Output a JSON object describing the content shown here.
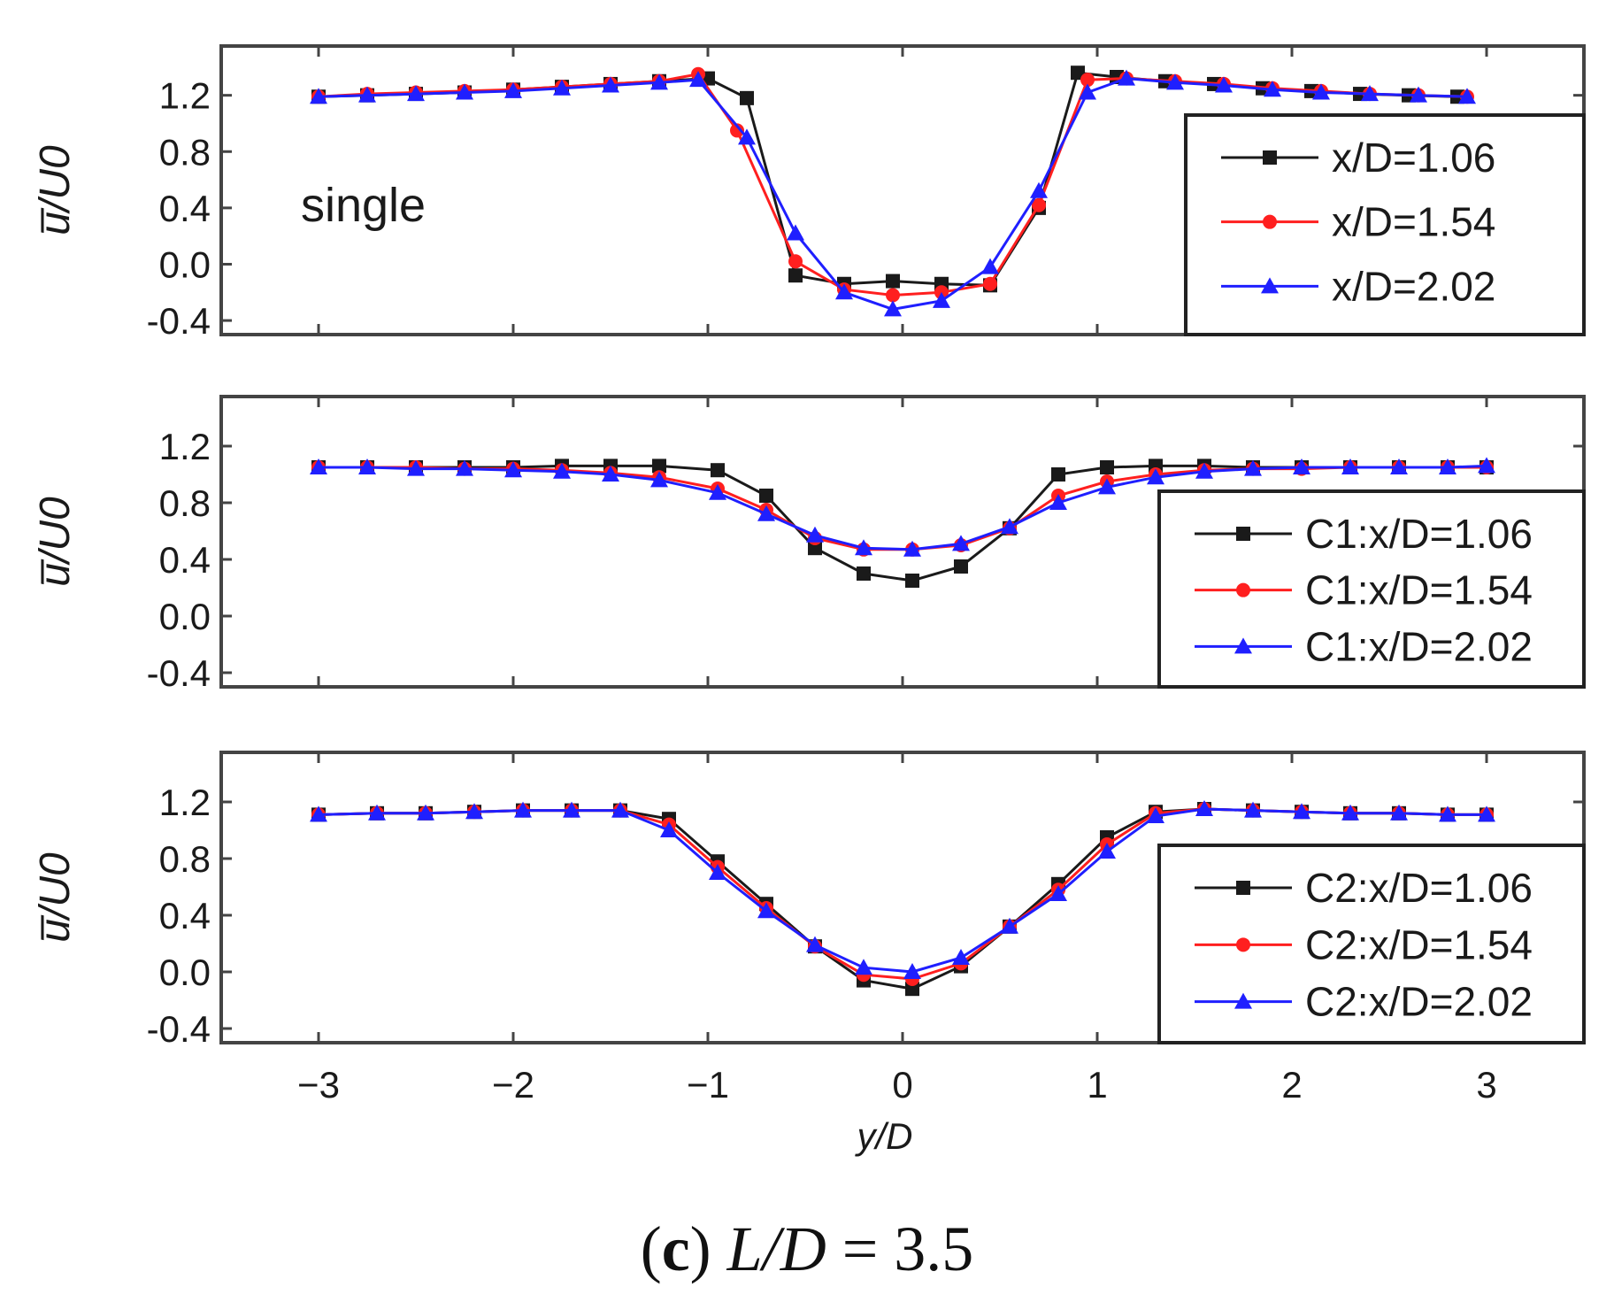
{
  "caption": {
    "open_paren": "(",
    "letter": "c",
    "close_paren": ")",
    "lhs": "L/D",
    "rhs": " = 3.5"
  },
  "colors": {
    "black": "#1a1a1a",
    "red": "#ff1f1f",
    "blue": "#1f1fff"
  },
  "chart_data": [
    {
      "type": "line",
      "annotation": "single",
      "ylabel": "u̅/U0",
      "xlabel": "",
      "xlim": [
        -3.5,
        3.5
      ],
      "ylim": [
        -0.5,
        1.55
      ],
      "yticks": [
        "1.2",
        "0.8",
        "0.4",
        "0.0",
        "-0.4"
      ],
      "ytick_values": [
        1.2,
        0.8,
        0.4,
        0.0,
        -0.4
      ],
      "legend_position": "right",
      "series": [
        {
          "name": "x/D=1.06",
          "color": "#1a1a1a",
          "marker": "square",
          "x": [
            -3.0,
            -2.75,
            -2.5,
            -2.25,
            -2.0,
            -1.75,
            -1.5,
            -1.25,
            -1.0,
            -0.8,
            -0.55,
            -0.3,
            -0.05,
            0.2,
            0.45,
            0.7,
            0.9,
            1.1,
            1.35,
            1.6,
            1.85,
            2.1,
            2.35,
            2.6,
            2.85
          ],
          "y": [
            1.19,
            1.2,
            1.21,
            1.22,
            1.24,
            1.26,
            1.28,
            1.3,
            1.32,
            1.18,
            -0.08,
            -0.14,
            -0.12,
            -0.14,
            -0.15,
            0.4,
            1.36,
            1.33,
            1.3,
            1.28,
            1.25,
            1.23,
            1.21,
            1.2,
            1.19
          ]
        },
        {
          "name": "x/D=1.54",
          "color": "#ff1f1f",
          "marker": "circle",
          "x": [
            -3.0,
            -2.75,
            -2.5,
            -2.25,
            -2.0,
            -1.75,
            -1.5,
            -1.25,
            -1.05,
            -0.85,
            -0.55,
            -0.3,
            -0.05,
            0.2,
            0.45,
            0.7,
            0.95,
            1.15,
            1.4,
            1.65,
            1.9,
            2.15,
            2.4,
            2.65,
            2.9
          ],
          "y": [
            1.19,
            1.21,
            1.22,
            1.23,
            1.24,
            1.26,
            1.28,
            1.3,
            1.35,
            0.95,
            0.02,
            -0.18,
            -0.22,
            -0.2,
            -0.14,
            0.42,
            1.31,
            1.32,
            1.3,
            1.28,
            1.25,
            1.23,
            1.21,
            1.2,
            1.19
          ]
        },
        {
          "name": "x/D=2.02",
          "color": "#1f1fff",
          "marker": "triangle",
          "x": [
            -3.0,
            -2.75,
            -2.5,
            -2.25,
            -2.0,
            -1.75,
            -1.5,
            -1.25,
            -1.05,
            -0.8,
            -0.55,
            -0.3,
            -0.05,
            0.2,
            0.45,
            0.7,
            0.95,
            1.15,
            1.4,
            1.65,
            1.9,
            2.15,
            2.4,
            2.65,
            2.9
          ],
          "y": [
            1.19,
            1.2,
            1.21,
            1.22,
            1.23,
            1.25,
            1.27,
            1.29,
            1.31,
            0.9,
            0.22,
            -0.2,
            -0.32,
            -0.26,
            -0.02,
            0.52,
            1.22,
            1.32,
            1.29,
            1.27,
            1.24,
            1.22,
            1.21,
            1.2,
            1.19
          ]
        }
      ]
    },
    {
      "type": "line",
      "annotation": "",
      "ylabel": "u̅/U0",
      "xlabel": "",
      "xlim": [
        -3.5,
        3.5
      ],
      "ylim": [
        -0.5,
        1.55
      ],
      "yticks": [
        "1.2",
        "0.8",
        "0.4",
        "0.0",
        "-0.4"
      ],
      "ytick_values": [
        1.2,
        0.8,
        0.4,
        0.0,
        -0.4
      ],
      "legend_position": "right",
      "series": [
        {
          "name": "C1:x/D=1.06",
          "color": "#1a1a1a",
          "marker": "square",
          "x": [
            -3.0,
            -2.75,
            -2.5,
            -2.25,
            -2.0,
            -1.75,
            -1.5,
            -1.25,
            -0.95,
            -0.7,
            -0.45,
            -0.2,
            0.05,
            0.3,
            0.55,
            0.8,
            1.05,
            1.3,
            1.55,
            1.8,
            2.05,
            2.3,
            2.55,
            2.8,
            3.0
          ],
          "y": [
            1.05,
            1.05,
            1.05,
            1.05,
            1.05,
            1.06,
            1.06,
            1.06,
            1.03,
            0.85,
            0.48,
            0.3,
            0.25,
            0.35,
            0.62,
            1.0,
            1.05,
            1.06,
            1.06,
            1.05,
            1.05,
            1.05,
            1.05,
            1.05,
            1.05
          ]
        },
        {
          "name": "C1:x/D=1.54",
          "color": "#ff1f1f",
          "marker": "circle",
          "x": [
            -3.0,
            -2.75,
            -2.5,
            -2.25,
            -2.0,
            -1.75,
            -1.5,
            -1.25,
            -0.95,
            -0.7,
            -0.45,
            -0.2,
            0.05,
            0.3,
            0.55,
            0.8,
            1.05,
            1.3,
            1.55,
            1.8,
            2.05,
            2.3,
            2.55,
            2.8,
            3.0
          ],
          "y": [
            1.05,
            1.05,
            1.05,
            1.04,
            1.04,
            1.03,
            1.01,
            0.98,
            0.9,
            0.75,
            0.55,
            0.47,
            0.47,
            0.5,
            0.62,
            0.85,
            0.95,
            1.0,
            1.03,
            1.04,
            1.04,
            1.05,
            1.05,
            1.05,
            1.05
          ]
        },
        {
          "name": "C1:x/D=2.02",
          "color": "#1f1fff",
          "marker": "triangle",
          "x": [
            -3.0,
            -2.75,
            -2.5,
            -2.25,
            -2.0,
            -1.75,
            -1.5,
            -1.25,
            -0.95,
            -0.7,
            -0.45,
            -0.2,
            0.05,
            0.3,
            0.55,
            0.8,
            1.05,
            1.3,
            1.55,
            1.8,
            2.05,
            2.3,
            2.55,
            2.8,
            3.0
          ],
          "y": [
            1.05,
            1.05,
            1.04,
            1.04,
            1.03,
            1.02,
            1.0,
            0.96,
            0.87,
            0.72,
            0.57,
            0.48,
            0.47,
            0.51,
            0.63,
            0.8,
            0.91,
            0.98,
            1.02,
            1.04,
            1.05,
            1.05,
            1.05,
            1.05,
            1.06
          ]
        }
      ]
    },
    {
      "type": "line",
      "annotation": "",
      "ylabel": "u̅/U0",
      "xlabel": "y/D",
      "xlim": [
        -3.5,
        3.5
      ],
      "ylim": [
        -0.5,
        1.55
      ],
      "xticks": [
        "−3",
        "−2",
        "−1",
        "0",
        "1",
        "2",
        "3"
      ],
      "xtick_values": [
        -3,
        -2,
        -1,
        0,
        1,
        2,
        3
      ],
      "yticks": [
        "1.2",
        "0.8",
        "0.4",
        "0.0",
        "-0.4"
      ],
      "ytick_values": [
        1.2,
        0.8,
        0.4,
        0.0,
        -0.4
      ],
      "legend_position": "right",
      "series": [
        {
          "name": "C2:x/D=1.06",
          "color": "#1a1a1a",
          "marker": "square",
          "x": [
            -3.0,
            -2.7,
            -2.45,
            -2.2,
            -1.95,
            -1.7,
            -1.45,
            -1.2,
            -0.95,
            -0.7,
            -0.45,
            -0.2,
            0.05,
            0.3,
            0.55,
            0.8,
            1.05,
            1.3,
            1.55,
            1.8,
            2.05,
            2.3,
            2.55,
            2.8,
            3.0
          ],
          "y": [
            1.11,
            1.12,
            1.12,
            1.13,
            1.14,
            1.14,
            1.14,
            1.08,
            0.78,
            0.48,
            0.18,
            -0.06,
            -0.12,
            0.04,
            0.32,
            0.62,
            0.95,
            1.13,
            1.15,
            1.14,
            1.13,
            1.12,
            1.12,
            1.11,
            1.11
          ]
        },
        {
          "name": "C2:x/D=1.54",
          "color": "#ff1f1f",
          "marker": "circle",
          "x": [
            -3.0,
            -2.7,
            -2.45,
            -2.2,
            -1.95,
            -1.7,
            -1.45,
            -1.2,
            -0.95,
            -0.7,
            -0.45,
            -0.2,
            0.05,
            0.3,
            0.55,
            0.8,
            1.05,
            1.3,
            1.55,
            1.8,
            2.05,
            2.3,
            2.55,
            2.8,
            3.0
          ],
          "y": [
            1.11,
            1.12,
            1.12,
            1.13,
            1.14,
            1.14,
            1.14,
            1.04,
            0.74,
            0.45,
            0.18,
            -0.02,
            -0.05,
            0.06,
            0.32,
            0.58,
            0.9,
            1.12,
            1.15,
            1.14,
            1.13,
            1.12,
            1.12,
            1.11,
            1.11
          ]
        },
        {
          "name": "C2:x/D=2.02",
          "color": "#1f1fff",
          "marker": "triangle",
          "x": [
            -3.0,
            -2.7,
            -2.45,
            -2.2,
            -1.95,
            -1.7,
            -1.45,
            -1.2,
            -0.95,
            -0.7,
            -0.45,
            -0.2,
            0.05,
            0.3,
            0.55,
            0.8,
            1.05,
            1.3,
            1.55,
            1.8,
            2.05,
            2.3,
            2.55,
            2.8,
            3.0
          ],
          "y": [
            1.11,
            1.12,
            1.12,
            1.13,
            1.14,
            1.14,
            1.14,
            1.0,
            0.7,
            0.43,
            0.19,
            0.03,
            0.0,
            0.1,
            0.32,
            0.55,
            0.85,
            1.1,
            1.15,
            1.14,
            1.13,
            1.12,
            1.12,
            1.11,
            1.11
          ]
        }
      ]
    }
  ]
}
